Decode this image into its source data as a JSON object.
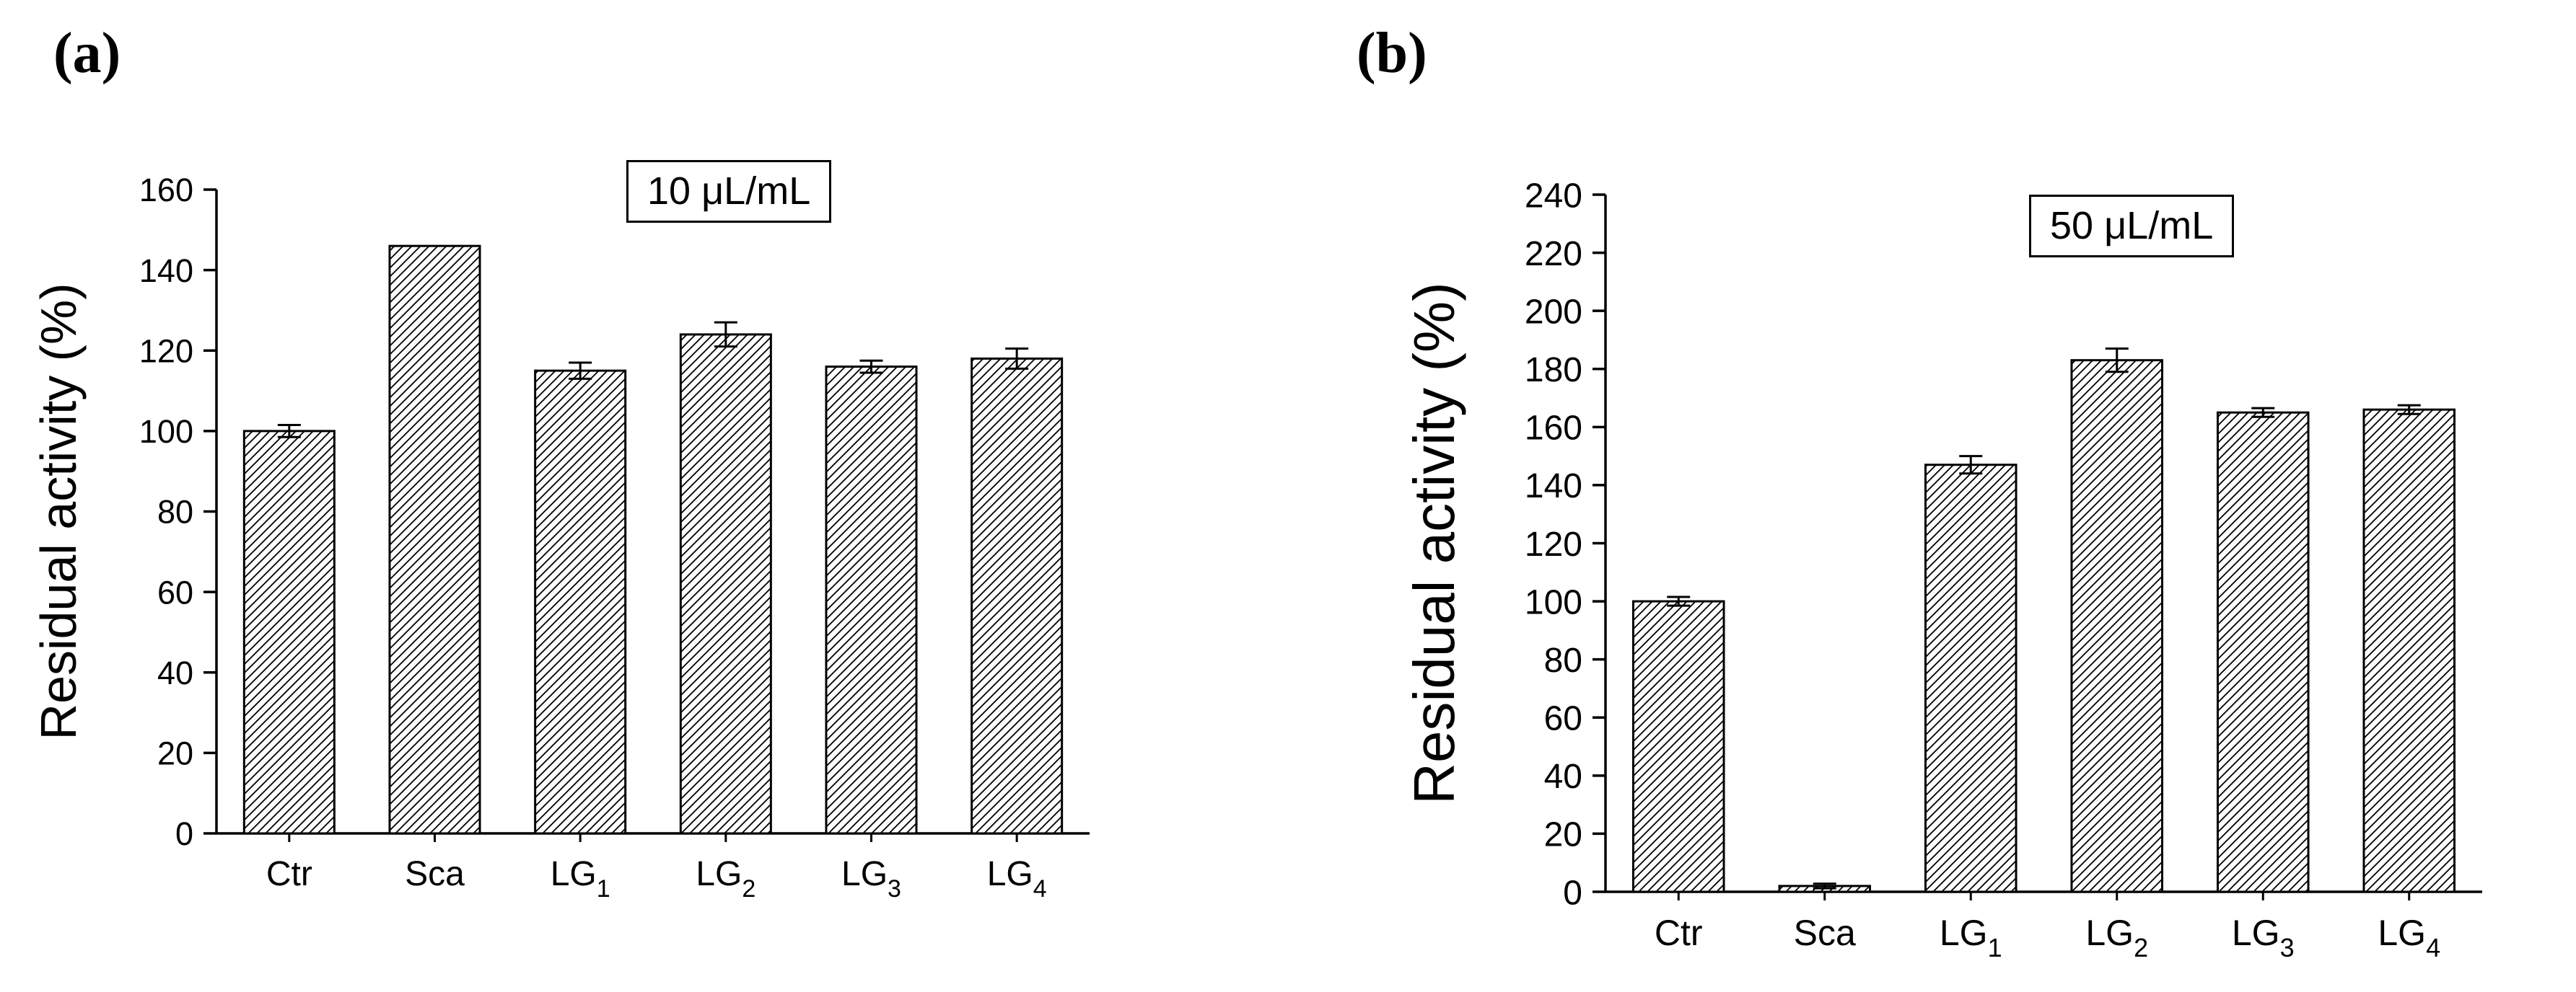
{
  "page": {
    "background": "#ffffff",
    "foreground": "#000000"
  },
  "chart_data": [
    {
      "type": "bar",
      "panel": "(a)",
      "annotation": "10 μL/mL",
      "ylabel": "Residual activity (%)",
      "xlabel": "",
      "ylim": [
        0,
        160
      ],
      "ytick_step": 20,
      "grid": false,
      "legend": "none",
      "bar_style": {
        "fill": "#ffffff",
        "hatch": "diagonal-forward",
        "stroke": "#000000"
      },
      "categories": [
        {
          "base": "Ctr",
          "sub": ""
        },
        {
          "base": "Sca",
          "sub": ""
        },
        {
          "base": "LG",
          "sub": "1"
        },
        {
          "base": "LG",
          "sub": "2"
        },
        {
          "base": "LG",
          "sub": "3"
        },
        {
          "base": "LG",
          "sub": "4"
        }
      ],
      "values": [
        100,
        146,
        115,
        124,
        116,
        118
      ],
      "errors": [
        1.5,
        0,
        2,
        3,
        1.5,
        2.5
      ]
    },
    {
      "type": "bar",
      "panel": "(b)",
      "annotation": "50 μL/mL",
      "ylabel": "Residual activity (%)",
      "xlabel": "",
      "ylim": [
        0,
        240
      ],
      "ytick_step": 20,
      "grid": false,
      "legend": "none",
      "bar_style": {
        "fill": "#ffffff",
        "hatch": "diagonal-forward",
        "stroke": "#000000"
      },
      "categories": [
        {
          "base": "Ctr",
          "sub": ""
        },
        {
          "base": "Sca",
          "sub": ""
        },
        {
          "base": "LG",
          "sub": "1"
        },
        {
          "base": "LG",
          "sub": "2"
        },
        {
          "base": "LG",
          "sub": "3"
        },
        {
          "base": "LG",
          "sub": "4"
        }
      ],
      "values": [
        100,
        2,
        147,
        183,
        165,
        166
      ],
      "errors": [
        1.5,
        0.8,
        3,
        4,
        1.5,
        1.5
      ]
    }
  ]
}
